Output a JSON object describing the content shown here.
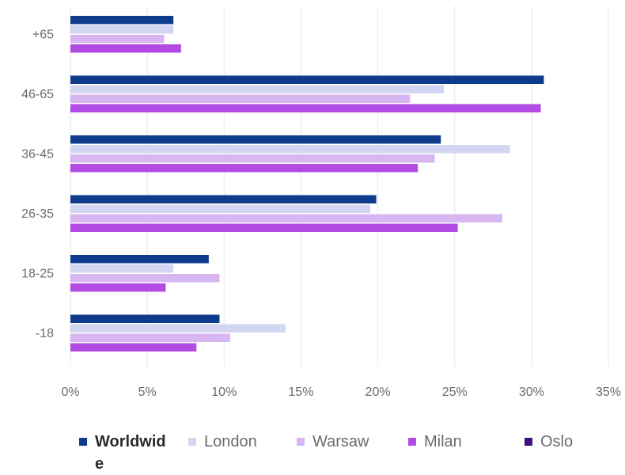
{
  "chart_data": {
    "type": "bar",
    "orientation": "horizontal",
    "categories": [
      "+65",
      "46-65",
      "36-45",
      "26-35",
      "18-25",
      "-18"
    ],
    "xlim": [
      0,
      35
    ],
    "xticks": [
      "0%",
      "5%",
      "10%",
      "15%",
      "20%",
      "25%",
      "30%",
      "35%"
    ],
    "xtick_values": [
      0,
      5,
      10,
      15,
      20,
      25,
      30,
      35
    ],
    "grid": "vertical",
    "legend_position": "bottom",
    "series": [
      {
        "name": "Worldwide",
        "color": "#0f3b8c",
        "values": [
          6.7,
          30.8,
          24.1,
          19.9,
          9.0,
          9.7
        ]
      },
      {
        "name": "London",
        "color": "#d3d6f2",
        "values": [
          6.7,
          24.3,
          28.6,
          19.5,
          6.7,
          14.0
        ]
      },
      {
        "name": "Warsaw",
        "color": "#d7b6f2",
        "values": [
          6.1,
          22.1,
          23.7,
          28.1,
          9.7,
          10.4
        ]
      },
      {
        "name": "Milan",
        "color": "#b24be3",
        "values": [
          7.2,
          30.6,
          22.6,
          25.2,
          6.2,
          8.2
        ]
      },
      {
        "name": "Oslo",
        "color": "#3f127a",
        "values": [
          0,
          0,
          0,
          0,
          0,
          0
        ]
      }
    ]
  }
}
